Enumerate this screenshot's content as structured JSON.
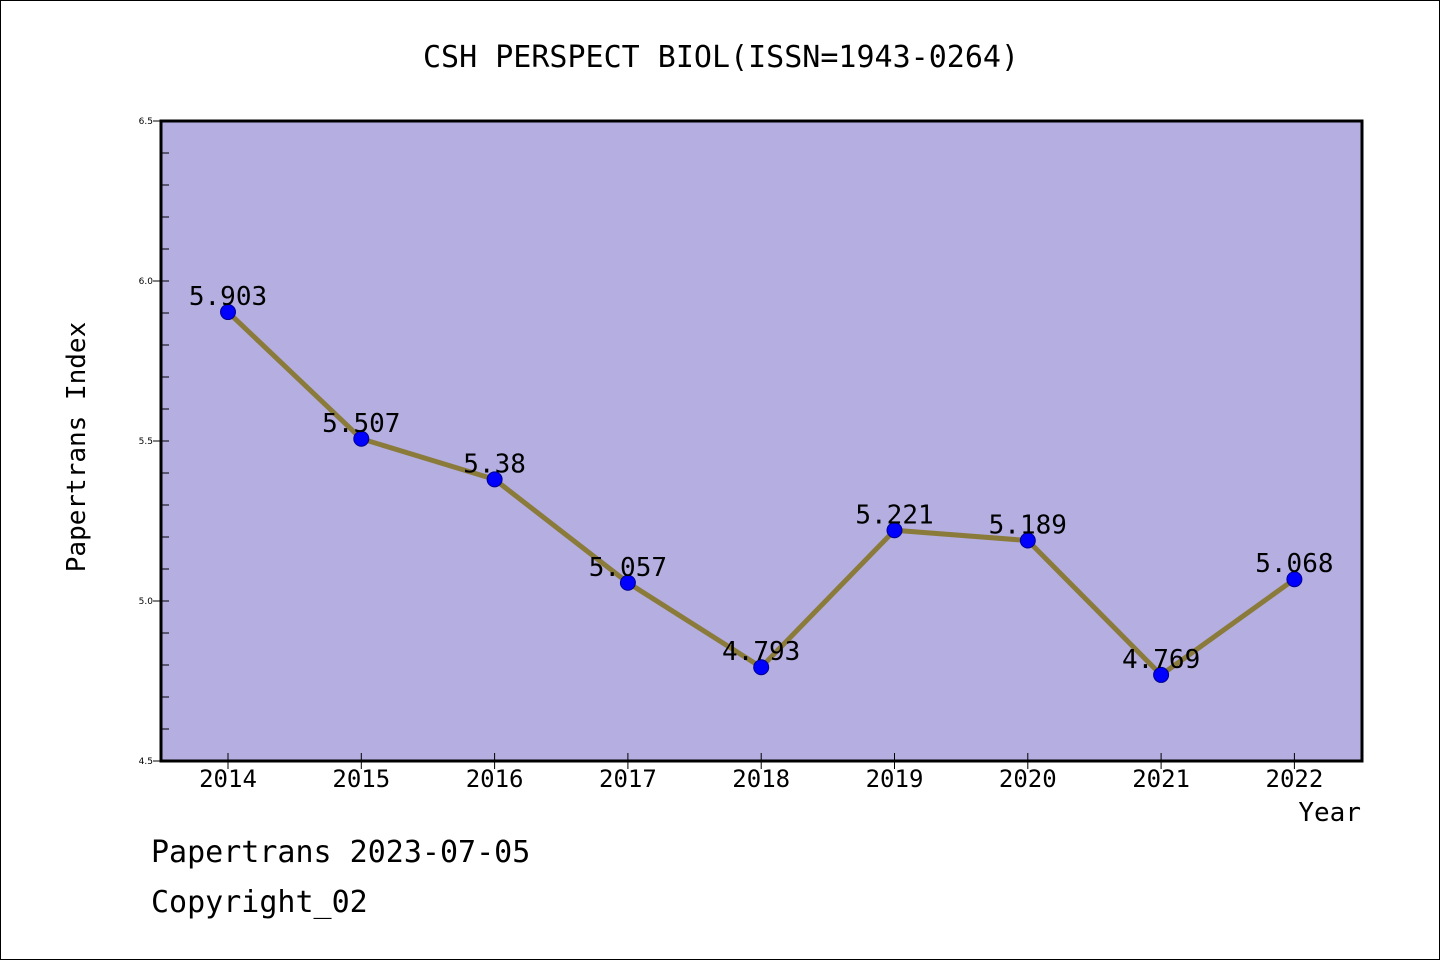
{
  "chart_data": {
    "type": "line",
    "title": "CSH PERSPECT BIOL(ISSN=1943-0264)",
    "xlabel": "Year",
    "ylabel": "Papertrans Index",
    "categories": [
      "2014",
      "2015",
      "2016",
      "2017",
      "2018",
      "2019",
      "2020",
      "2021",
      "2022"
    ],
    "series": [
      {
        "values": [
          5.903,
          5.507,
          5.38,
          5.057,
          4.793,
          5.221,
          5.189,
          4.769,
          5.068
        ],
        "labels": [
          "5.903",
          "5.507",
          "5.38",
          "5.057",
          "4.793",
          "5.221",
          "5.189",
          "4.769",
          "5.068"
        ]
      }
    ],
    "ylim": [
      4.5,
      6.5
    ],
    "yticks": [
      "4.5",
      "5.0",
      "5.5",
      "6.0",
      "6.5"
    ],
    "grid": false,
    "colors": {
      "plot_background": "#b4aee1",
      "line": "#8b7b3a",
      "marker": "#0000ff"
    }
  },
  "footer": {
    "date_text": "Papertrans 2023-07-05",
    "copyright_text": "Copyright_02"
  }
}
